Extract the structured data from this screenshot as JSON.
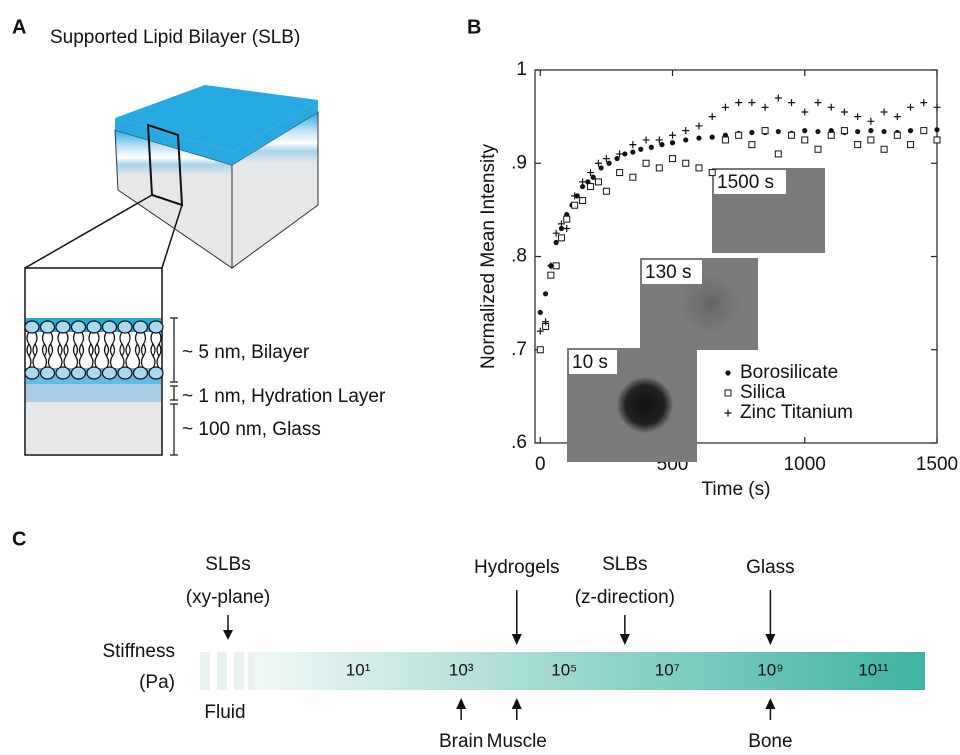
{
  "panel_labels": [
    "A",
    "B",
    "C"
  ],
  "panel_a": {
    "title": "Supported Lipid Bilayer (SLB)",
    "layers": [
      "~ 5 nm, Bilayer",
      "~ 1 nm, Hydration Layer",
      "~ 100 nm, Glass"
    ]
  },
  "chart_data": {
    "type": "scatter",
    "x_label": "Time (s)",
    "y_label": "Normalized Mean Intensity",
    "xlim": [
      -20,
      1500
    ],
    "ylim": [
      0.6,
      1
    ],
    "xticks": [
      0,
      500,
      1000,
      1500
    ],
    "yticks": [
      {
        "value": 0.6,
        "label": ".6"
      },
      {
        "value": 0.7,
        "label": ".7"
      },
      {
        "value": 0.8,
        "label": ".8"
      },
      {
        "value": 0.9,
        "label": ".9"
      },
      1
    ],
    "legend": "lower-right",
    "insets": [
      "1500 s",
      "130 s",
      "10 s"
    ],
    "series": [
      {
        "name": "Borosilicate",
        "marker": "dot",
        "color": "#111111",
        "x": [
          0,
          20,
          40,
          60,
          80,
          100,
          120,
          140,
          160,
          180,
          200,
          230,
          260,
          290,
          320,
          350,
          380,
          420,
          460,
          500,
          550,
          600,
          650,
          700,
          750,
          800,
          850,
          900,
          950,
          1000,
          1050,
          1100,
          1150,
          1200,
          1250,
          1300,
          1350,
          1400,
          1450,
          1500
        ],
        "values": [
          0.74,
          0.76,
          0.79,
          0.815,
          0.83,
          0.845,
          0.855,
          0.865,
          0.875,
          0.88,
          0.885,
          0.895,
          0.9,
          0.905,
          0.91,
          0.912,
          0.915,
          0.917,
          0.92,
          0.922,
          0.925,
          0.927,
          0.928,
          0.93,
          0.932,
          0.933,
          0.933,
          0.934,
          0.932,
          0.935,
          0.934,
          0.935,
          0.933,
          0.934,
          0.935,
          0.934,
          0.933,
          0.935,
          0.934,
          0.936
        ]
      },
      {
        "name": "Silica",
        "marker": "square",
        "color": "#111111",
        "x": [
          0,
          20,
          40,
          60,
          80,
          100,
          130,
          160,
          190,
          220,
          250,
          300,
          350,
          400,
          450,
          500,
          550,
          600,
          650,
          700,
          750,
          800,
          850,
          900,
          950,
          1000,
          1050,
          1100,
          1150,
          1200,
          1250,
          1300,
          1350,
          1400,
          1450,
          1500
        ],
        "values": [
          0.7,
          0.725,
          0.78,
          0.79,
          0.82,
          0.84,
          0.855,
          0.86,
          0.875,
          0.88,
          0.87,
          0.89,
          0.885,
          0.9,
          0.895,
          0.905,
          0.9,
          0.895,
          0.89,
          0.925,
          0.93,
          0.92,
          0.935,
          0.91,
          0.93,
          0.925,
          0.915,
          0.93,
          0.935,
          0.92,
          0.925,
          0.915,
          0.93,
          0.92,
          0.935,
          0.925
        ]
      },
      {
        "name": "Zinc Titanium",
        "marker": "plus",
        "color": "#111111",
        "x": [
          0,
          20,
          40,
          60,
          80,
          100,
          130,
          160,
          190,
          220,
          250,
          300,
          350,
          400,
          450,
          500,
          550,
          600,
          650,
          700,
          750,
          800,
          850,
          900,
          950,
          1000,
          1050,
          1100,
          1150,
          1200,
          1250,
          1300,
          1350,
          1400,
          1450,
          1500
        ],
        "values": [
          0.72,
          0.73,
          0.79,
          0.825,
          0.835,
          0.83,
          0.865,
          0.88,
          0.89,
          0.9,
          0.905,
          0.91,
          0.92,
          0.925,
          0.925,
          0.93,
          0.935,
          0.94,
          0.95,
          0.96,
          0.965,
          0.965,
          0.96,
          0.97,
          0.965,
          0.955,
          0.965,
          0.96,
          0.955,
          0.95,
          0.945,
          0.955,
          0.95,
          0.96,
          0.965,
          0.96
        ]
      }
    ]
  },
  "stiffness_scale": {
    "axis_label": [
      "Stiffness",
      "(Pa)"
    ],
    "scale": "log",
    "xlim": [
      0.1,
      1000000000000
    ],
    "xticks": [
      {
        "value": 10,
        "label": "10¹"
      },
      {
        "value": 1000,
        "label": "10³"
      },
      {
        "value": 100000,
        "label": "10⁵"
      },
      {
        "value": 10000000,
        "label": "10⁷"
      },
      {
        "value": 1000000000,
        "label": "10⁹"
      },
      {
        "value": 100000000000,
        "label": "10¹¹"
      }
    ],
    "fluid_label": "Fluid",
    "fluid_annotation": [
      "SLBs",
      "(xy-plane)"
    ],
    "annotations": [
      {
        "label": [
          "Hydrogels"
        ],
        "value": 12000,
        "side": "above",
        "long": true
      },
      {
        "label": [
          "SLBs",
          "(z-direction)"
        ],
        "value": 1500000,
        "side": "above",
        "long": false
      },
      {
        "label": [
          "Glass"
        ],
        "value": 1000000000,
        "side": "above",
        "long": true
      },
      {
        "label": [
          "Brain"
        ],
        "value": 1000,
        "side": "below",
        "long": false
      },
      {
        "label": [
          "Muscle"
        ],
        "value": 12000,
        "side": "below",
        "long": false
      },
      {
        "label": [
          "Bone"
        ],
        "value": 1000000000,
        "side": "below",
        "long": false
      }
    ]
  }
}
